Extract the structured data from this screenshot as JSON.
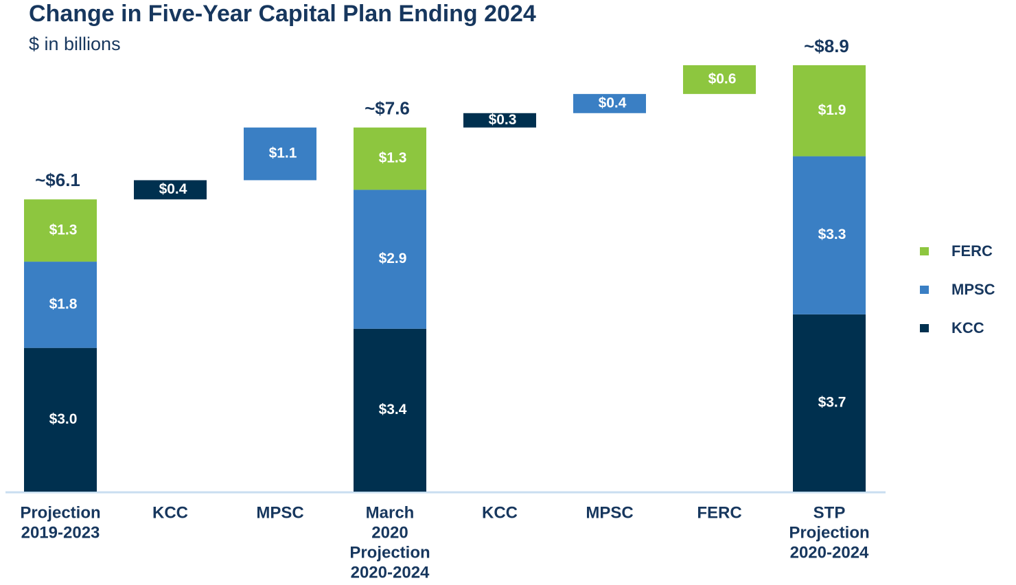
{
  "chart_data": {
    "type": "waterfall",
    "title": "Change in Five-Year Capital Plan Ending 2024",
    "subtitle": "$ in billions",
    "categories": [
      [
        "Projection",
        "2019-2023"
      ],
      [
        "KCC"
      ],
      [
        "MPSC"
      ],
      [
        "March",
        "2020",
        "Projection",
        "2020-2024"
      ],
      [
        "KCC"
      ],
      [
        "MPSC"
      ],
      [
        "FERC"
      ],
      [
        "STP",
        "Projection",
        "2020-2024"
      ]
    ],
    "totals": [
      6.1,
      null,
      null,
      7.6,
      null,
      null,
      null,
      8.9
    ],
    "total_labels": [
      "~$6.1",
      null,
      null,
      "~$7.6",
      null,
      null,
      null,
      "~$8.9"
    ],
    "series": [
      {
        "name": "KCC",
        "color": "#00304f",
        "values": [
          3.0,
          0.4,
          null,
          3.4,
          0.3,
          null,
          null,
          3.7
        ],
        "value_labels": [
          "$3.0",
          "$0.4",
          null,
          "$3.4",
          "$0.3",
          null,
          null,
          "$3.7"
        ]
      },
      {
        "name": "MPSC",
        "color": "#3a7fc4",
        "values": [
          1.8,
          null,
          1.1,
          2.9,
          null,
          0.4,
          null,
          3.3
        ],
        "value_labels": [
          "$1.8",
          null,
          "$1.1",
          "$2.9",
          null,
          "$0.4",
          null,
          "$3.3"
        ]
      },
      {
        "name": "FERC",
        "color": "#8dc63f",
        "values": [
          1.3,
          null,
          null,
          1.3,
          null,
          null,
          0.6,
          1.9
        ],
        "value_labels": [
          "$1.3",
          null,
          null,
          "$1.3",
          null,
          null,
          "$0.6",
          "$1.9"
        ]
      }
    ],
    "legend": "right"
  }
}
